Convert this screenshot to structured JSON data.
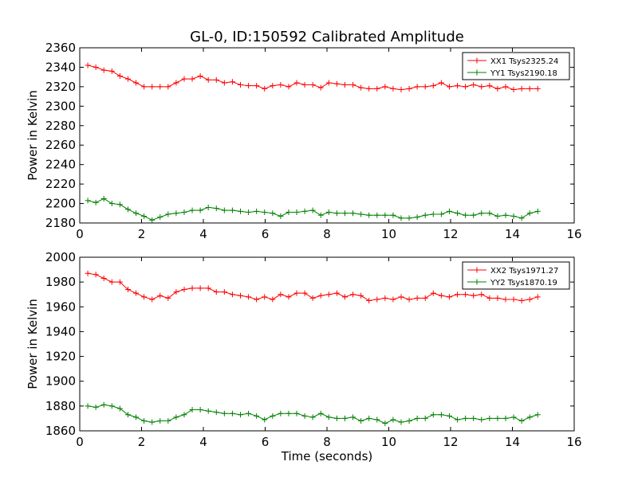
{
  "chart_data": [
    {
      "type": "line",
      "title": "GL-0, ID:150592 Calibrated Amplitude",
      "xlabel": "",
      "ylabel": "Power in Kelvin",
      "xlim": [
        0,
        16
      ],
      "ylim": [
        2180,
        2360
      ],
      "xticks": [
        0,
        2,
        4,
        6,
        8,
        10,
        12,
        14,
        16
      ],
      "yticks": [
        2180,
        2200,
        2220,
        2240,
        2260,
        2280,
        2300,
        2320,
        2340,
        2360
      ],
      "legend_position": "top-right",
      "grid": false,
      "series": [
        {
          "name": "XX1 Tsys2325.24",
          "color": "#ff0000",
          "x": [
            0.26,
            0.52,
            0.78,
            1.04,
            1.3,
            1.56,
            1.82,
            2.08,
            2.34,
            2.6,
            2.86,
            3.12,
            3.38,
            3.64,
            3.9,
            4.16,
            4.42,
            4.68,
            4.94,
            5.2,
            5.46,
            5.72,
            5.98,
            6.24,
            6.5,
            6.76,
            7.02,
            7.28,
            7.54,
            7.8,
            8.06,
            8.32,
            8.58,
            8.84,
            9.1,
            9.36,
            9.62,
            9.88,
            10.14,
            10.4,
            10.66,
            10.92,
            11.18,
            11.44,
            11.7,
            11.96,
            12.22,
            12.48,
            12.74,
            13.0,
            13.26,
            13.52,
            13.78,
            14.04,
            14.3,
            14.56,
            14.82
          ],
          "y": [
            2342,
            2340,
            2337,
            2336,
            2331,
            2328,
            2324,
            2320,
            2320,
            2320,
            2320,
            2324,
            2328,
            2328,
            2331,
            2327,
            2327,
            2324,
            2325,
            2322,
            2321,
            2321,
            2318,
            2321,
            2322,
            2320,
            2324,
            2322,
            2322,
            2319,
            2324,
            2323,
            2322,
            2322,
            2319,
            2318,
            2318,
            2320,
            2318,
            2317,
            2318,
            2320,
            2320,
            2321,
            2324,
            2320,
            2321,
            2320,
            2322,
            2320,
            2321,
            2318,
            2320,
            2317,
            2318,
            2318,
            2318
          ]
        },
        {
          "name": "YY1 Tsys2190.18",
          "color": "#008000",
          "x": [
            0.26,
            0.52,
            0.78,
            1.04,
            1.3,
            1.56,
            1.82,
            2.08,
            2.34,
            2.6,
            2.86,
            3.12,
            3.38,
            3.64,
            3.9,
            4.16,
            4.42,
            4.68,
            4.94,
            5.2,
            5.46,
            5.72,
            5.98,
            6.24,
            6.5,
            6.76,
            7.02,
            7.28,
            7.54,
            7.8,
            8.06,
            8.32,
            8.58,
            8.84,
            9.1,
            9.36,
            9.62,
            9.88,
            10.14,
            10.4,
            10.66,
            10.92,
            11.18,
            11.44,
            11.7,
            11.96,
            12.22,
            12.48,
            12.74,
            13.0,
            13.26,
            13.52,
            13.78,
            14.04,
            14.3,
            14.56,
            14.82
          ],
          "y": [
            2203,
            2201,
            2205,
            2200,
            2199,
            2194,
            2190,
            2187,
            2183,
            2186,
            2189,
            2190,
            2191,
            2193,
            2193,
            2196,
            2195,
            2193,
            2193,
            2192,
            2191,
            2192,
            2191,
            2190,
            2187,
            2191,
            2191,
            2192,
            2193,
            2188,
            2191,
            2190,
            2190,
            2190,
            2189,
            2188,
            2188,
            2188,
            2188,
            2185,
            2185,
            2186,
            2188,
            2189,
            2189,
            2192,
            2190,
            2188,
            2188,
            2190,
            2190,
            2187,
            2188,
            2187,
            2185,
            2190,
            2192
          ]
        }
      ]
    },
    {
      "type": "line",
      "title": "",
      "xlabel": "Time (seconds)",
      "ylabel": "Power in Kelvin",
      "xlim": [
        0,
        16
      ],
      "ylim": [
        1860,
        2000
      ],
      "xticks": [
        0,
        2,
        4,
        6,
        8,
        10,
        12,
        14,
        16
      ],
      "yticks": [
        1860,
        1880,
        1900,
        1920,
        1940,
        1960,
        1980,
        2000
      ],
      "legend_position": "top-right",
      "grid": false,
      "series": [
        {
          "name": "XX2 Tsys1971.27",
          "color": "#ff0000",
          "x": [
            0.26,
            0.52,
            0.78,
            1.04,
            1.3,
            1.56,
            1.82,
            2.08,
            2.34,
            2.6,
            2.86,
            3.12,
            3.38,
            3.64,
            3.9,
            4.16,
            4.42,
            4.68,
            4.94,
            5.2,
            5.46,
            5.72,
            5.98,
            6.24,
            6.5,
            6.76,
            7.02,
            7.28,
            7.54,
            7.8,
            8.06,
            8.32,
            8.58,
            8.84,
            9.1,
            9.36,
            9.62,
            9.88,
            10.14,
            10.4,
            10.66,
            10.92,
            11.18,
            11.44,
            11.7,
            11.96,
            12.22,
            12.48,
            12.74,
            13.0,
            13.26,
            13.52,
            13.78,
            14.04,
            14.3,
            14.56,
            14.82
          ],
          "y": [
            1987,
            1986,
            1983,
            1980,
            1980,
            1974,
            1971,
            1968,
            1966,
            1969,
            1967,
            1972,
            1974,
            1975,
            1975,
            1975,
            1972,
            1972,
            1970,
            1969,
            1968,
            1966,
            1968,
            1966,
            1970,
            1968,
            1971,
            1971,
            1967,
            1969,
            1970,
            1971,
            1968,
            1970,
            1969,
            1965,
            1966,
            1967,
            1966,
            1968,
            1966,
            1967,
            1967,
            1971,
            1969,
            1968,
            1970,
            1970,
            1969,
            1970,
            1967,
            1967,
            1966,
            1966,
            1965,
            1966,
            1968
          ]
        },
        {
          "name": "YY2 Tsys1870.19",
          "color": "#008000",
          "x": [
            0.26,
            0.52,
            0.78,
            1.04,
            1.3,
            1.56,
            1.82,
            2.08,
            2.34,
            2.6,
            2.86,
            3.12,
            3.38,
            3.64,
            3.9,
            4.16,
            4.42,
            4.68,
            4.94,
            5.2,
            5.46,
            5.72,
            5.98,
            6.24,
            6.5,
            6.76,
            7.02,
            7.28,
            7.54,
            7.8,
            8.06,
            8.32,
            8.58,
            8.84,
            9.1,
            9.36,
            9.62,
            9.88,
            10.14,
            10.4,
            10.66,
            10.92,
            11.18,
            11.44,
            11.7,
            11.96,
            12.22,
            12.48,
            12.74,
            13.0,
            13.26,
            13.52,
            13.78,
            14.04,
            14.3,
            14.56,
            14.82
          ],
          "y": [
            1880,
            1879,
            1881,
            1880,
            1878,
            1873,
            1871,
            1868,
            1867,
            1868,
            1868,
            1871,
            1873,
            1877,
            1877,
            1876,
            1875,
            1874,
            1874,
            1873,
            1874,
            1872,
            1869,
            1872,
            1874,
            1874,
            1874,
            1872,
            1871,
            1874,
            1871,
            1870,
            1870,
            1871,
            1868,
            1870,
            1869,
            1866,
            1869,
            1867,
            1868,
            1870,
            1870,
            1873,
            1873,
            1872,
            1869,
            1870,
            1870,
            1869,
            1870,
            1870,
            1870,
            1871,
            1868,
            1871,
            1873
          ]
        }
      ]
    }
  ]
}
